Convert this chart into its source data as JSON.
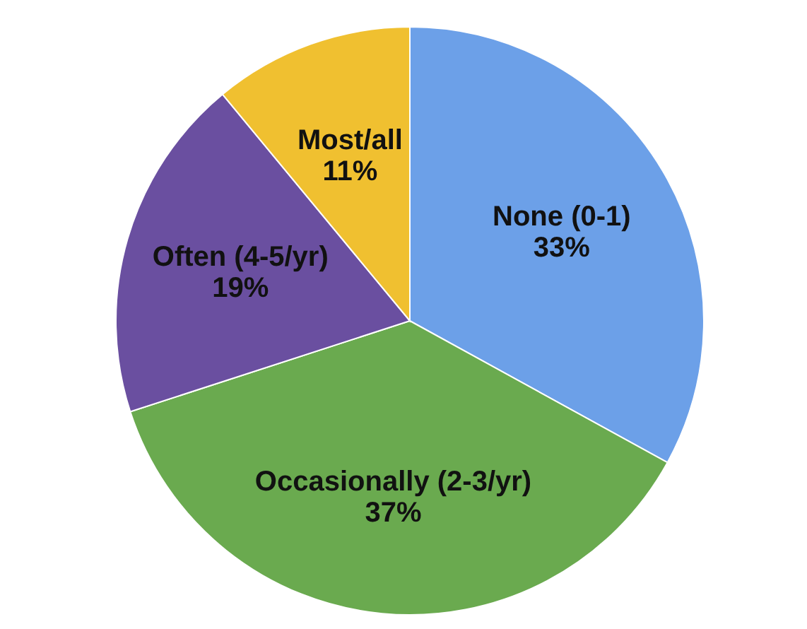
{
  "chart_data": {
    "type": "pie",
    "categories": [
      "None (0-1)",
      "Occasionally (2-3/yr)",
      "Often (4-5/yr)",
      "Most/all"
    ],
    "values": [
      33,
      37,
      19,
      11
    ],
    "colors": [
      "#6ca0e8",
      "#6aaa4f",
      "#6a4fa0",
      "#f0c030"
    ],
    "value_labels": [
      "33%",
      "37%",
      "19%",
      "11%"
    ],
    "legend": false
  }
}
